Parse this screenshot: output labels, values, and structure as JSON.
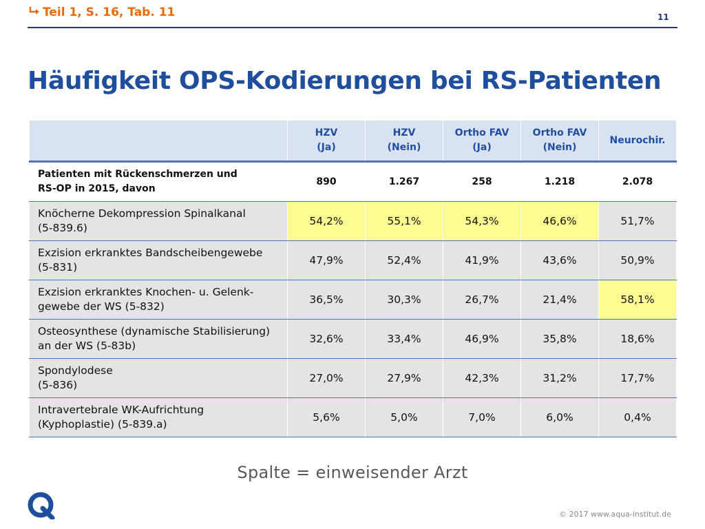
{
  "header": {
    "reference": "Teil 1, S. 16, Tab. 11",
    "slide_number": "11"
  },
  "title": "Häufigkeit OPS-Kodierungen bei RS-Patienten",
  "table": {
    "columns": [
      {
        "line1": "HZV",
        "line2": "(Ja)"
      },
      {
        "line1": "HZV",
        "line2": "(Nein)"
      },
      {
        "line1": "Ortho FAV",
        "line2": "(Ja)"
      },
      {
        "line1": "Ortho FAV",
        "line2": "(Nein)"
      },
      {
        "line1": "Neurochir.",
        "line2": ""
      }
    ],
    "rows": [
      {
        "line1": "Patienten mit Rückenschmerzen und",
        "line2": "RS-OP in 2015, davon",
        "values": [
          "890",
          "1.267",
          "258",
          "1.218",
          "2.078"
        ],
        "highlight": [
          false,
          false,
          false,
          false,
          false
        ]
      },
      {
        "line1": "Knöcherne Dekompression Spinalkanal",
        "line2": "(5-839.6)",
        "values": [
          "54,2%",
          "55,1%",
          "54,3%",
          "46,6%",
          "51,7%"
        ],
        "highlight": [
          true,
          true,
          true,
          true,
          false
        ]
      },
      {
        "line1": "Exzision erkranktes Bandscheibengewebe",
        "line2": "(5-831)",
        "values": [
          "47,9%",
          "52,4%",
          "41,9%",
          "43,6%",
          "50,9%"
        ],
        "highlight": [
          false,
          false,
          false,
          false,
          false
        ]
      },
      {
        "line1": "Exzision erkranktes Knochen- u. Gelenk-",
        "line2": "gewebe der WS (5-832)",
        "values": [
          "36,5%",
          "30,3%",
          "26,7%",
          "21,4%",
          "58,1%"
        ],
        "highlight": [
          false,
          false,
          false,
          false,
          true
        ]
      },
      {
        "line1": "Osteosynthese (dynamische Stabilisierung)",
        "line2": "an der WS (5-83b)",
        "values": [
          "32,6%",
          "33,4%",
          "46,9%",
          "35,8%",
          "18,6%"
        ],
        "highlight": [
          false,
          false,
          false,
          false,
          false
        ]
      },
      {
        "line1": "Spondylodese",
        "line2": "(5-836)",
        "values": [
          "27,0%",
          "27,9%",
          "42,3%",
          "31,2%",
          "17,7%"
        ],
        "highlight": [
          false,
          false,
          false,
          false,
          false
        ]
      },
      {
        "line1": "Intravertebrale WK-Aufrichtung",
        "line2": "(Kyphoplastie) (5-839.a)",
        "values": [
          "5,6%",
          "5,0%",
          "7,0%",
          "6,0%",
          "0,4%"
        ],
        "highlight": [
          false,
          false,
          false,
          false,
          false
        ]
      }
    ]
  },
  "caption": "Spalte = einweisender Arzt",
  "footer": {
    "logo_letter": "Q",
    "copyright": "© 2017 www.aqua-institut.de"
  },
  "colors": {
    "accent_orange": "#e46c0a",
    "title_blue": "#1f4e9c",
    "highlight_yellow": "#fcfc92"
  },
  "icons": {
    "reference_arrow": "arrow-return-icon",
    "logo": "aqua-q-logo-icon"
  }
}
